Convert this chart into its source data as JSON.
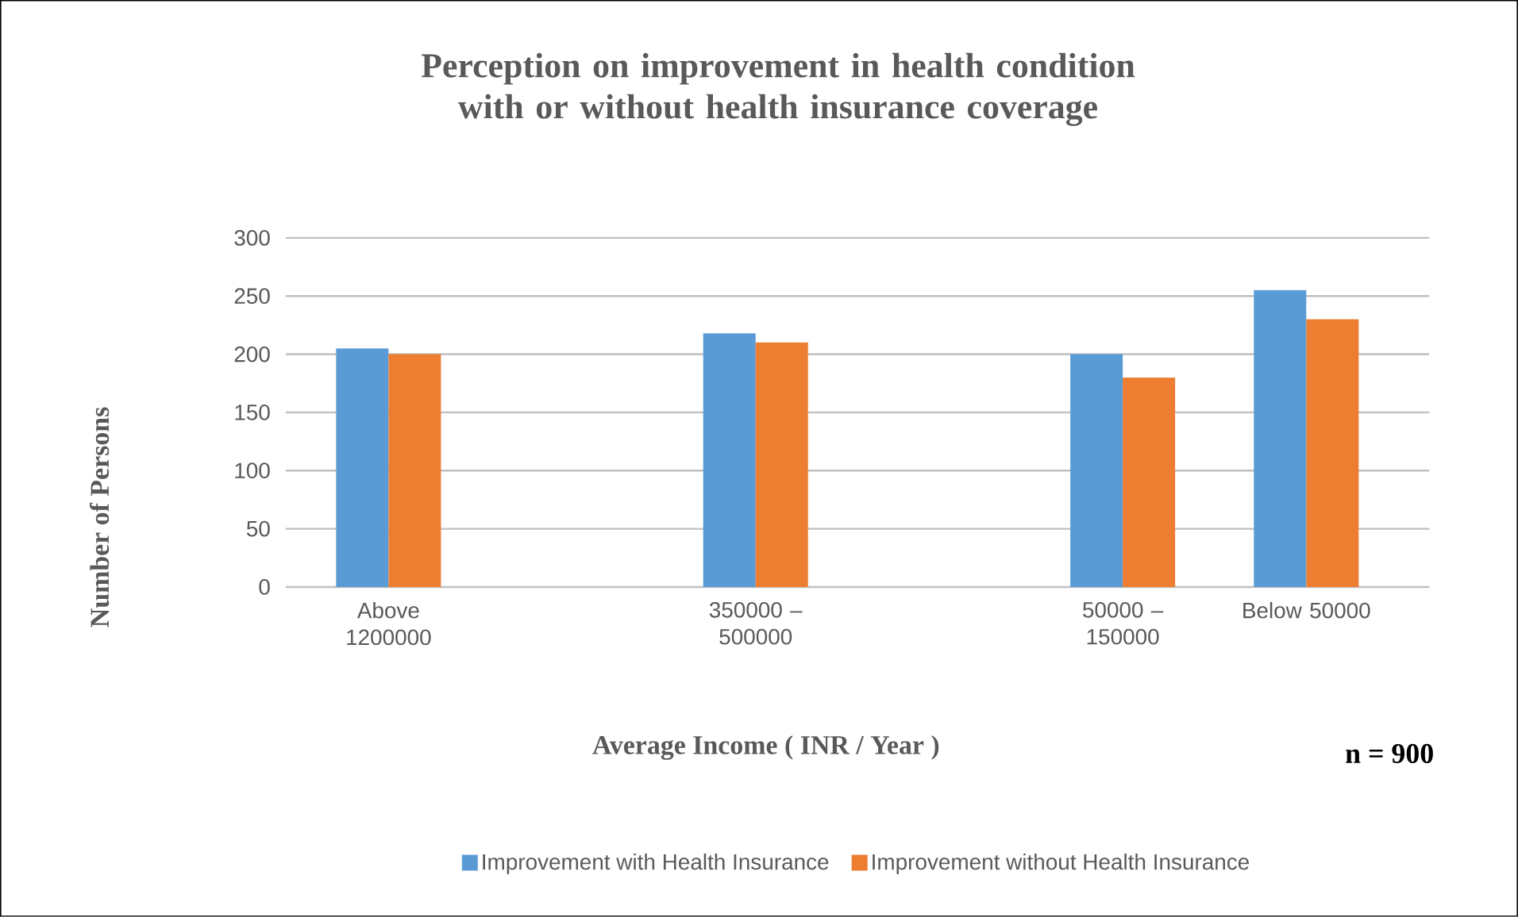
{
  "chart_data": {
    "type": "bar",
    "title": "Perception on improvement in health condition with or without health insurance coverage",
    "xlabel": "Average Income ( INR / Year )",
    "ylabel": "Number of Persons",
    "categories": [
      "Above 1200000",
      null,
      "350000 – 500000",
      null,
      "50000 – 150000",
      "Below 50000"
    ],
    "series": [
      {
        "name": "Improvement with Health Insurance",
        "color": "#5b9bd5",
        "values": [
          205,
          null,
          218,
          null,
          200,
          255
        ]
      },
      {
        "name": "Improvement without Health Insurance",
        "color": "#ed7d31",
        "values": [
          200,
          null,
          210,
          null,
          180,
          230
        ]
      }
    ],
    "ylim": [
      0,
      300
    ],
    "yticks": [
      0,
      50,
      100,
      150,
      200,
      250,
      300
    ],
    "grid": "y",
    "legend": "bottom",
    "annotations": [
      "n = 900"
    ]
  }
}
